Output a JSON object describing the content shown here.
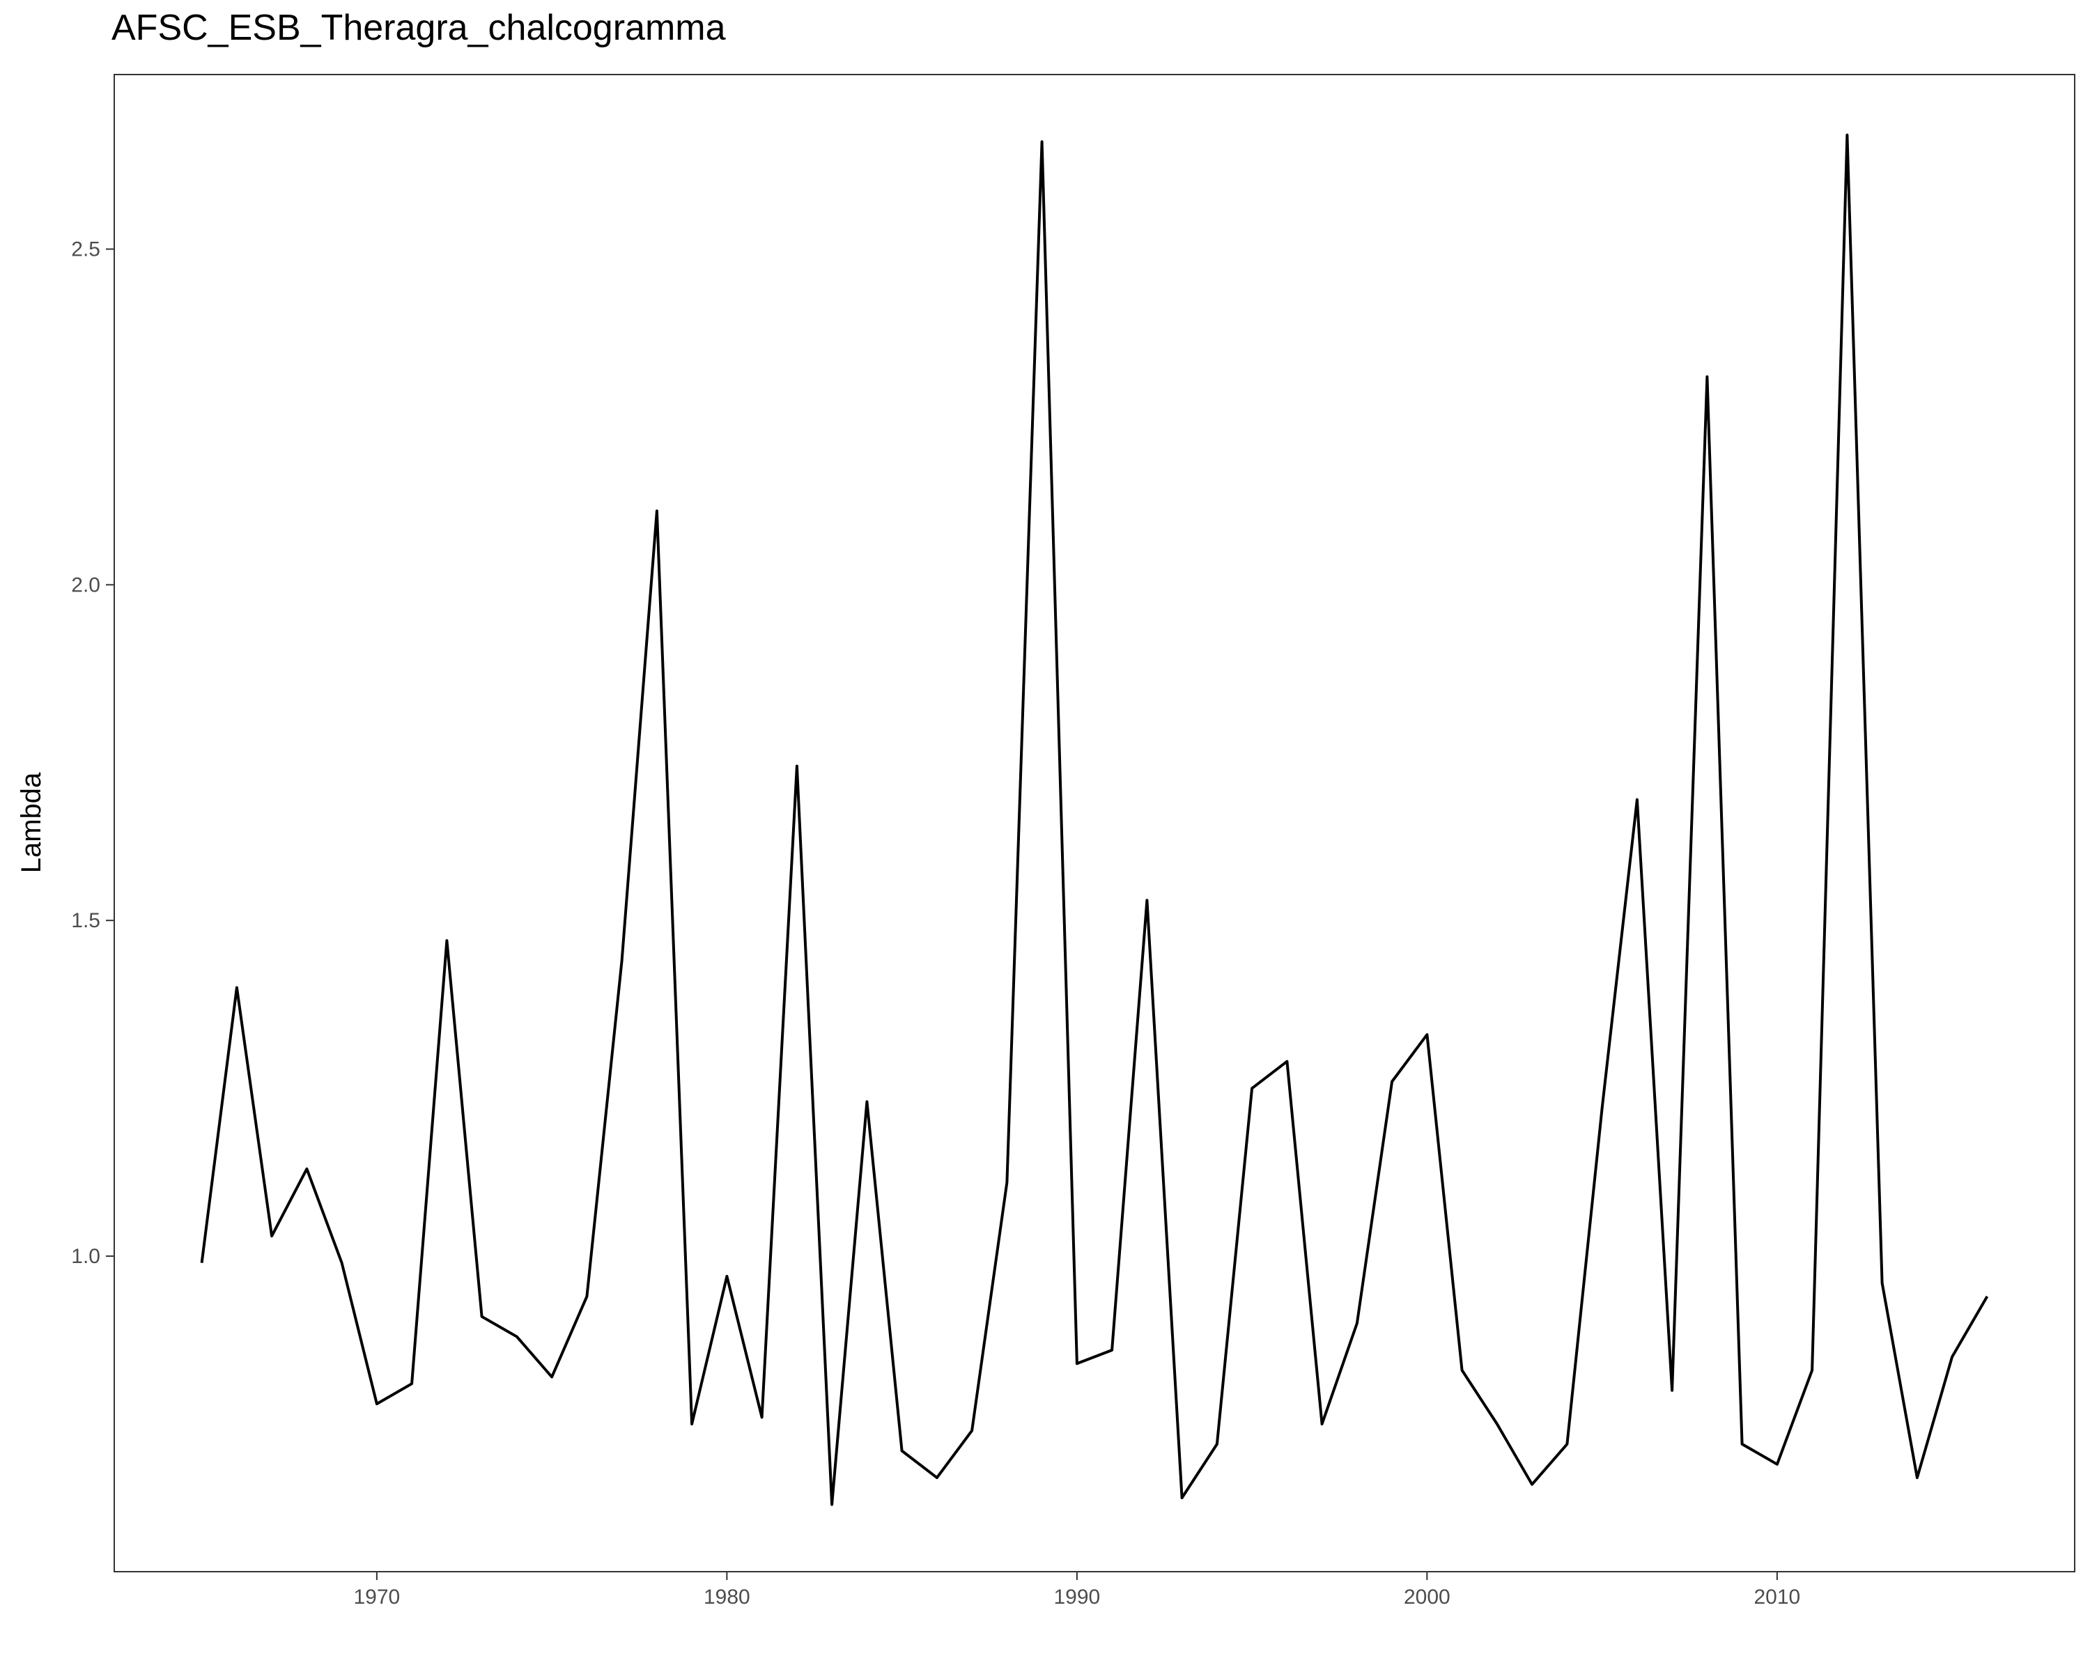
{
  "chart_data": {
    "type": "line",
    "title": "AFSC_ESB_Theragra_chalcogramma",
    "xlabel": "",
    "ylabel": "Lambda",
    "xlim": [
      1962.5,
      2018.5
    ],
    "ylim": [
      0.53,
      2.76
    ],
    "x_ticks": [
      1970,
      1980,
      1990,
      2000,
      2010
    ],
    "y_ticks": [
      1.0,
      1.5,
      2.0,
      2.5
    ],
    "y_tick_labels": [
      "1.0",
      "1.5",
      "2.0",
      "2.5"
    ],
    "grid": false,
    "line_color": "#000000",
    "series": [
      {
        "x": [
          1965,
          1966,
          1967,
          1968,
          1969,
          1970,
          1971,
          1972,
          1973,
          1974,
          1975,
          1976,
          1977,
          1978,
          1979,
          1980,
          1981,
          1982,
          1983,
          1984,
          1985,
          1986,
          1987,
          1988,
          1989,
          1990,
          1991,
          1992,
          1993,
          1994,
          1995,
          1996,
          1997,
          1998,
          1999,
          2000,
          2001,
          2002,
          2003,
          2004,
          2005,
          2006,
          2007,
          2008,
          2009,
          2010,
          2011,
          2012,
          2013,
          2014,
          2015,
          2016
        ],
        "values": [
          0.99,
          1.4,
          1.03,
          1.13,
          0.99,
          0.78,
          0.81,
          1.47,
          0.91,
          0.88,
          0.82,
          0.94,
          1.44,
          2.11,
          0.75,
          0.97,
          0.76,
          1.73,
          0.63,
          1.23,
          0.71,
          0.67,
          0.74,
          1.11,
          2.66,
          0.84,
          0.86,
          1.53,
          0.64,
          0.72,
          1.25,
          1.29,
          0.75,
          0.9,
          1.26,
          1.33,
          0.83,
          0.75,
          0.66,
          0.72,
          1.22,
          1.68,
          0.8,
          2.31,
          0.72,
          0.69,
          0.83,
          2.67,
          0.96,
          0.67,
          0.85,
          0.94
        ]
      }
    ]
  }
}
